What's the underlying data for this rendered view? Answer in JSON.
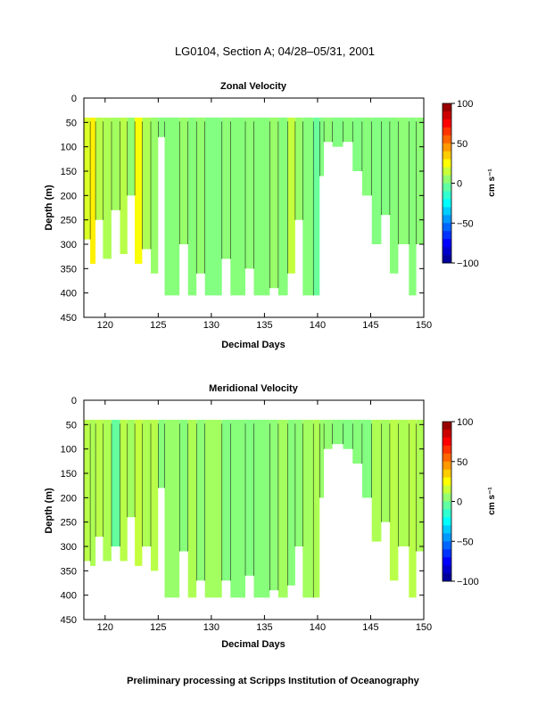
{
  "figure": {
    "title": "LG0104, Section A; 04/28–05/31, 2001",
    "footer": "Preliminary processing at Scripps Institution of Oceanography"
  },
  "chart_data": [
    {
      "type": "heatmap",
      "title": "Zonal Velocity",
      "xlabel": "Decimal Days",
      "ylabel": "Depth (m)",
      "xlim": [
        118,
        150
      ],
      "ylim": [
        450,
        0
      ],
      "xticks": [
        120,
        125,
        130,
        135,
        140,
        145,
        150
      ],
      "yticks": [
        0,
        50,
        100,
        150,
        200,
        250,
        300,
        350,
        400,
        450
      ],
      "colorbar": {
        "label": "cm s⁻¹",
        "range": [
          -100,
          100
        ],
        "ticks": [
          100,
          50,
          0,
          -50,
          -100
        ]
      },
      "columns": [
        {
          "x0": 118.0,
          "x1": 118.6,
          "bottom": 290,
          "value": 18
        },
        {
          "x0": 118.6,
          "x1": 119.1,
          "bottom": 340,
          "value": 28
        },
        {
          "x0": 119.1,
          "x1": 119.8,
          "bottom": 250,
          "value": 12
        },
        {
          "x0": 119.8,
          "x1": 120.6,
          "bottom": 330,
          "value": 10
        },
        {
          "x0": 120.6,
          "x1": 121.4,
          "bottom": 230,
          "value": 8
        },
        {
          "x0": 121.4,
          "x1": 122.1,
          "bottom": 320,
          "value": 12
        },
        {
          "x0": 122.1,
          "x1": 122.8,
          "bottom": 200,
          "value": 5
        },
        {
          "x0": 122.8,
          "x1": 123.5,
          "bottom": 340,
          "value": 24
        },
        {
          "x0": 123.5,
          "x1": 124.3,
          "bottom": 310,
          "value": 10
        },
        {
          "x0": 124.3,
          "x1": 125.0,
          "bottom": 360,
          "value": 6
        },
        {
          "x0": 125.0,
          "x1": 125.6,
          "bottom": 80,
          "value": 3
        },
        {
          "x0": 125.6,
          "x1": 127.0,
          "bottom": 405,
          "value": 3
        },
        {
          "x0": 127.0,
          "x1": 127.8,
          "bottom": 300,
          "value": 6
        },
        {
          "x0": 127.8,
          "x1": 128.6,
          "bottom": 405,
          "value": 3
        },
        {
          "x0": 128.6,
          "x1": 129.4,
          "bottom": 360,
          "value": 5
        },
        {
          "x0": 129.4,
          "x1": 131.0,
          "bottom": 405,
          "value": 2
        },
        {
          "x0": 131.0,
          "x1": 131.8,
          "bottom": 330,
          "value": 4
        },
        {
          "x0": 131.8,
          "x1": 133.2,
          "bottom": 405,
          "value": 3
        },
        {
          "x0": 133.2,
          "x1": 134.0,
          "bottom": 350,
          "value": 4
        },
        {
          "x0": 134.0,
          "x1": 135.5,
          "bottom": 405,
          "value": 3
        },
        {
          "x0": 135.5,
          "x1": 136.3,
          "bottom": 390,
          "value": 6
        },
        {
          "x0": 136.3,
          "x1": 137.2,
          "bottom": 405,
          "value": 3
        },
        {
          "x0": 137.2,
          "x1": 137.9,
          "bottom": 360,
          "value": 14
        },
        {
          "x0": 137.9,
          "x1": 138.6,
          "bottom": 250,
          "value": 6
        },
        {
          "x0": 138.6,
          "x1": 139.6,
          "bottom": 405,
          "value": 3
        },
        {
          "x0": 139.6,
          "x1": 140.2,
          "bottom": 405,
          "value": -3
        },
        {
          "x0": 140.2,
          "x1": 140.6,
          "bottom": 160,
          "value": 2
        },
        {
          "x0": 140.6,
          "x1": 141.4,
          "bottom": 90,
          "value": 4
        },
        {
          "x0": 141.4,
          "x1": 142.4,
          "bottom": 100,
          "value": 2
        },
        {
          "x0": 142.4,
          "x1": 143.3,
          "bottom": 90,
          "value": 3
        },
        {
          "x0": 143.3,
          "x1": 144.2,
          "bottom": 150,
          "value": 2
        },
        {
          "x0": 144.2,
          "x1": 145.1,
          "bottom": 200,
          "value": 3
        },
        {
          "x0": 145.1,
          "x1": 146.0,
          "bottom": 300,
          "value": 2
        },
        {
          "x0": 146.0,
          "x1": 146.8,
          "bottom": 240,
          "value": 2
        },
        {
          "x0": 146.8,
          "x1": 147.6,
          "bottom": 360,
          "value": 3
        },
        {
          "x0": 147.6,
          "x1": 148.6,
          "bottom": 300,
          "value": 4
        },
        {
          "x0": 148.6,
          "x1": 149.3,
          "bottom": 405,
          "value": 3
        },
        {
          "x0": 149.3,
          "x1": 150.0,
          "bottom": 300,
          "value": 4
        }
      ]
    },
    {
      "type": "heatmap",
      "title": "Meridional Velocity",
      "xlabel": "Decimal Days",
      "ylabel": "Depth (m)",
      "xlim": [
        118,
        150
      ],
      "ylim": [
        450,
        0
      ],
      "xticks": [
        120,
        125,
        130,
        135,
        140,
        145,
        150
      ],
      "yticks": [
        0,
        50,
        100,
        150,
        200,
        250,
        300,
        350,
        400,
        450
      ],
      "colorbar": {
        "label": "cm s⁻¹",
        "range": [
          -100,
          100
        ],
        "ticks": [
          100,
          50,
          0,
          -50,
          -100
        ]
      },
      "columns": [
        {
          "x0": 118.0,
          "x1": 118.6,
          "bottom": 330,
          "value": 12
        },
        {
          "x0": 118.6,
          "x1": 119.1,
          "bottom": 340,
          "value": 10
        },
        {
          "x0": 119.1,
          "x1": 119.8,
          "bottom": 280,
          "value": 12
        },
        {
          "x0": 119.8,
          "x1": 120.6,
          "bottom": 330,
          "value": 10
        },
        {
          "x0": 120.6,
          "x1": 121.4,
          "bottom": 300,
          "value": -4
        },
        {
          "x0": 121.4,
          "x1": 122.1,
          "bottom": 330,
          "value": 12
        },
        {
          "x0": 122.1,
          "x1": 122.8,
          "bottom": 240,
          "value": 8
        },
        {
          "x0": 122.8,
          "x1": 123.5,
          "bottom": 340,
          "value": 14
        },
        {
          "x0": 123.5,
          "x1": 124.3,
          "bottom": 300,
          "value": 10
        },
        {
          "x0": 124.3,
          "x1": 125.0,
          "bottom": 350,
          "value": 12
        },
        {
          "x0": 125.0,
          "x1": 125.6,
          "bottom": 180,
          "value": 3
        },
        {
          "x0": 125.6,
          "x1": 127.0,
          "bottom": 405,
          "value": 6
        },
        {
          "x0": 127.0,
          "x1": 127.8,
          "bottom": 310,
          "value": 3
        },
        {
          "x0": 127.8,
          "x1": 128.6,
          "bottom": 405,
          "value": 10
        },
        {
          "x0": 128.6,
          "x1": 129.4,
          "bottom": 370,
          "value": 4
        },
        {
          "x0": 129.4,
          "x1": 131.0,
          "bottom": 405,
          "value": 8
        },
        {
          "x0": 131.0,
          "x1": 131.8,
          "bottom": 370,
          "value": 2
        },
        {
          "x0": 131.8,
          "x1": 133.2,
          "bottom": 405,
          "value": 3
        },
        {
          "x0": 133.2,
          "x1": 134.0,
          "bottom": 360,
          "value": 2
        },
        {
          "x0": 134.0,
          "x1": 135.5,
          "bottom": 405,
          "value": 3
        },
        {
          "x0": 135.5,
          "x1": 136.3,
          "bottom": 390,
          "value": 4
        },
        {
          "x0": 136.3,
          "x1": 137.2,
          "bottom": 405,
          "value": 8
        },
        {
          "x0": 137.2,
          "x1": 137.9,
          "bottom": 380,
          "value": 3
        },
        {
          "x0": 137.9,
          "x1": 138.6,
          "bottom": 300,
          "value": 4
        },
        {
          "x0": 138.6,
          "x1": 139.6,
          "bottom": 405,
          "value": 8
        },
        {
          "x0": 139.6,
          "x1": 140.2,
          "bottom": 405,
          "value": 10
        },
        {
          "x0": 140.2,
          "x1": 140.6,
          "bottom": 200,
          "value": 6
        },
        {
          "x0": 140.6,
          "x1": 141.4,
          "bottom": 100,
          "value": 5
        },
        {
          "x0": 141.4,
          "x1": 142.4,
          "bottom": 90,
          "value": 3
        },
        {
          "x0": 142.4,
          "x1": 143.3,
          "bottom": 100,
          "value": 2
        },
        {
          "x0": 143.3,
          "x1": 144.2,
          "bottom": 130,
          "value": 3
        },
        {
          "x0": 144.2,
          "x1": 145.1,
          "bottom": 200,
          "value": 2
        },
        {
          "x0": 145.1,
          "x1": 146.0,
          "bottom": 290,
          "value": 10
        },
        {
          "x0": 146.0,
          "x1": 146.8,
          "bottom": 250,
          "value": 8
        },
        {
          "x0": 146.8,
          "x1": 147.6,
          "bottom": 370,
          "value": 12
        },
        {
          "x0": 147.6,
          "x1": 148.6,
          "bottom": 300,
          "value": 10
        },
        {
          "x0": 148.6,
          "x1": 149.3,
          "bottom": 405,
          "value": 12
        },
        {
          "x0": 149.3,
          "x1": 150.0,
          "bottom": 310,
          "value": 10
        }
      ]
    }
  ]
}
